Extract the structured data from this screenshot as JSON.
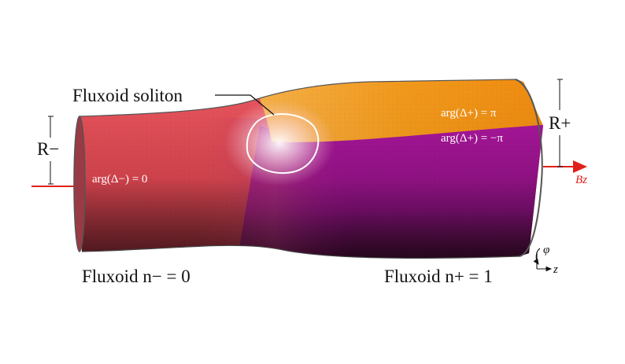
{
  "labels": {
    "soliton": "Fluxoid soliton",
    "r_minus": "R−",
    "r_plus": "R+",
    "arg_minus": "arg(Δ−) = 0",
    "arg_plus_pi": "arg(Δ+) = π",
    "arg_plus_neg_pi": "arg(Δ+) = −π",
    "fluxoid_left": "Fluxoid n− = 0",
    "fluxoid_right": "Fluxoid n+ = 1",
    "field": "Bz",
    "axis_phi": "φ",
    "axis_z": "z"
  },
  "colors": {
    "left_region": "#e8525a",
    "orange_region": "#f39a1c",
    "magenta_region": "#a0108e",
    "field_arrow": "#e0201a"
  }
}
